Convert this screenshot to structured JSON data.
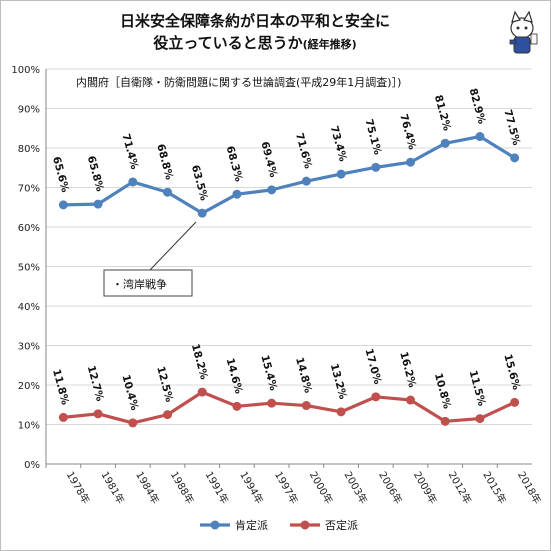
{
  "title_line1": "日米安全保障条約が日本の平和と安全に",
  "title_line2": "役立っていると思うか",
  "title_suffix": "(経年推移)",
  "chart_data": {
    "type": "line",
    "title": "日米安全保障条約が日本の平和と安全に役立っていると思うか(経年推移)",
    "source_note": "内閣府［自衛隊・防衛問題に関する世論調査(平成29年1月調査)］)",
    "annotation": "・湾岸戦争",
    "categories": [
      "1978年",
      "1981年",
      "1984年",
      "1988年",
      "1991年",
      "1994年",
      "1997年",
      "2000年",
      "2003年",
      "2006年",
      "2009年",
      "2012年",
      "2015年",
      "2018年"
    ],
    "series": [
      {
        "name": "肯定派",
        "color": "#4F81BD",
        "values": [
          65.6,
          65.8,
          71.4,
          68.8,
          63.5,
          68.3,
          69.4,
          71.6,
          73.4,
          75.1,
          76.4,
          81.2,
          82.9,
          77.5
        ],
        "labels": [
          "65.6%",
          "65.8%",
          "71.4%",
          "68.8%",
          "63.5%",
          "68.3%",
          "69.4%",
          "71.6%",
          "73.4%",
          "75.1%",
          "76.4%",
          "81.2%",
          "82.9%",
          "77.5%"
        ]
      },
      {
        "name": "否定派",
        "color": "#C0504D",
        "values": [
          11.8,
          12.7,
          10.4,
          12.5,
          18.2,
          14.6,
          15.4,
          14.8,
          13.2,
          17.0,
          16.2,
          10.8,
          11.5,
          15.6
        ],
        "labels": [
          "11.8%",
          "12.7%",
          "10.4%",
          "12.5%",
          "18.2%",
          "14.6%",
          "15.4%",
          "14.8%",
          "13.2%",
          "17.0%",
          "16.2%",
          "10.8%",
          "11.5%",
          "15.6%"
        ]
      }
    ],
    "y_ticks": [
      "0%",
      "10%",
      "20%",
      "30%",
      "40%",
      "50%",
      "60%",
      "70%",
      "80%",
      "90%",
      "100%"
    ],
    "ylim": [
      0,
      100
    ],
    "grid": true,
    "legend": "bottom"
  }
}
